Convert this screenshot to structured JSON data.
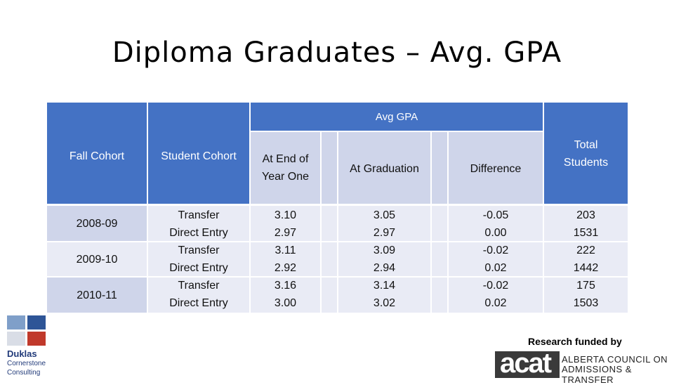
{
  "slide": {
    "title": "Diploma Graduates – Avg. GPA"
  },
  "table": {
    "group_header": "Avg GPA",
    "columns": {
      "fall_cohort": "Fall Cohort",
      "student_cohort": "Student Cohort",
      "end_year_one": [
        "At End of",
        "Year One"
      ],
      "at_graduation": "At Graduation",
      "difference": "Difference",
      "total_students": [
        "Total",
        "Students"
      ]
    },
    "cohorts": [
      "2008-09",
      "2009-10",
      "2010-11"
    ],
    "rows": [
      {
        "student_cohort": "Transfer",
        "end_year_one": "3.10",
        "at_graduation": "3.05",
        "difference": "-0.05",
        "total": "203"
      },
      {
        "student_cohort": "Direct Entry",
        "end_year_one": "2.97",
        "at_graduation": "2.97",
        "difference": "0.00",
        "total": "1531"
      },
      {
        "student_cohort": "Transfer",
        "end_year_one": "3.11",
        "at_graduation": "3.09",
        "difference": "-0.02",
        "total": "222"
      },
      {
        "student_cohort": "Direct Entry",
        "end_year_one": "2.92",
        "at_graduation": "2.94",
        "difference": "0.02",
        "total": "1442"
      },
      {
        "student_cohort": "Transfer",
        "end_year_one": "3.16",
        "at_graduation": "3.14",
        "difference": "-0.02",
        "total": "175"
      },
      {
        "student_cohort": "Direct Entry",
        "end_year_one": "3.00",
        "at_graduation": "3.02",
        "difference": "0.02",
        "total": "1503"
      }
    ]
  },
  "logos": {
    "duklas": [
      "Duklas",
      "Cornerstone",
      "Consulting"
    ],
    "funded_by": "Research funded by",
    "acat_mark": "acat",
    "acat_lines": [
      "ALBERTA COUNCIL ON",
      "ADMISSIONS & TRANSFER"
    ],
    "colors": {
      "header_blue": "#4472c4",
      "subheader": "#cfd5ea",
      "row_alt": "#e9ebf5",
      "duklas_red": "#c0392b"
    }
  }
}
